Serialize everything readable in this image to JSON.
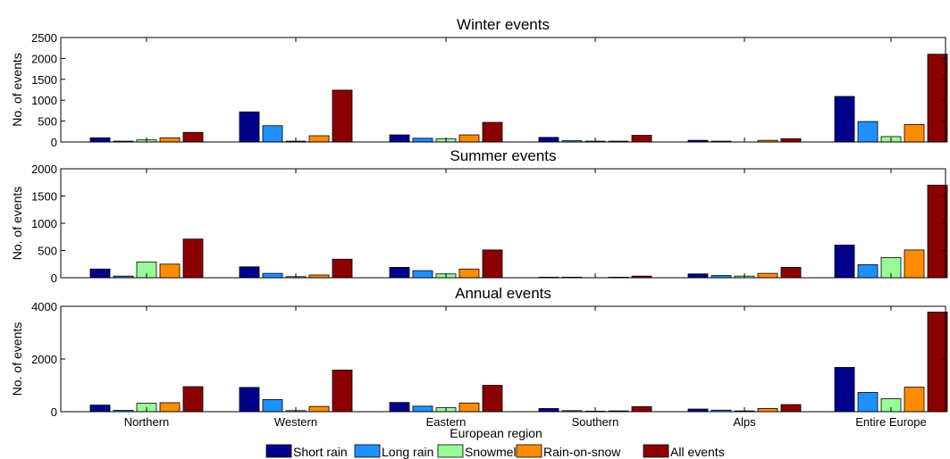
{
  "figure": {
    "xlabel": "European region",
    "legend_position": "bottom",
    "legend": [
      {
        "name": "Short rain",
        "color": "#00008b"
      },
      {
        "name": "Long rain",
        "color": "#1e90ff"
      },
      {
        "name": "Snowmelt",
        "color": "#98fb98"
      },
      {
        "name": "Rain-on-snow",
        "color": "#ff8c00"
      },
      {
        "name": "All events",
        "color": "#8b0000"
      }
    ]
  },
  "chart_data": [
    {
      "type": "bar",
      "title": "Winter events",
      "ylabel": "No. of events",
      "ylim": [
        0,
        2500
      ],
      "yticks": [
        0,
        500,
        1000,
        1500,
        2000,
        2500
      ],
      "grid": false,
      "categories": [
        "Northern",
        "Western",
        "Eastern",
        "Southern",
        "Alps",
        "Entire Europe"
      ],
      "series": [
        {
          "name": "Short rain",
          "values": [
            100,
            720,
            170,
            110,
            40,
            1090
          ]
        },
        {
          "name": "Long rain",
          "values": [
            20,
            390,
            90,
            30,
            20,
            490
          ]
        },
        {
          "name": "Snowmelt",
          "values": [
            50,
            20,
            80,
            20,
            0,
            130
          ]
        },
        {
          "name": "Rain-on-snow",
          "values": [
            100,
            150,
            170,
            20,
            40,
            420
          ]
        },
        {
          "name": "All events",
          "values": [
            230,
            1240,
            470,
            160,
            80,
            2100
          ]
        }
      ]
    },
    {
      "type": "bar",
      "title": "Summer events",
      "ylabel": "No. of events",
      "ylim": [
        0,
        2000
      ],
      "yticks": [
        0,
        500,
        1000,
        1500,
        2000
      ],
      "grid": false,
      "categories": [
        "Northern",
        "Western",
        "Eastern",
        "Southern",
        "Alps",
        "Entire Europe"
      ],
      "series": [
        {
          "name": "Short rain",
          "values": [
            160,
            200,
            190,
            10,
            70,
            600
          ]
        },
        {
          "name": "Long rain",
          "values": [
            30,
            80,
            130,
            10,
            40,
            240
          ]
        },
        {
          "name": "Snowmelt",
          "values": [
            290,
            20,
            70,
            0,
            30,
            370
          ]
        },
        {
          "name": "Rain-on-snow",
          "values": [
            250,
            50,
            160,
            10,
            80,
            510
          ]
        },
        {
          "name": "All events",
          "values": [
            710,
            340,
            510,
            30,
            190,
            1700
          ]
        }
      ]
    },
    {
      "type": "bar",
      "title": "Annual events",
      "ylabel": "No. of events",
      "ylim": [
        0,
        4000
      ],
      "yticks": [
        0,
        2000,
        4000
      ],
      "grid": false,
      "categories": [
        "Northern",
        "Western",
        "Eastern",
        "Southern",
        "Alps",
        "Entire Europe"
      ],
      "series": [
        {
          "name": "Short rain",
          "values": [
            250,
            920,
            350,
            120,
            100,
            1680
          ]
        },
        {
          "name": "Long rain",
          "values": [
            50,
            460,
            210,
            40,
            60,
            730
          ]
        },
        {
          "name": "Snowmelt",
          "values": [
            320,
            40,
            150,
            20,
            30,
            490
          ]
        },
        {
          "name": "Rain-on-snow",
          "values": [
            340,
            200,
            330,
            30,
            120,
            930
          ]
        },
        {
          "name": "All events",
          "values": [
            950,
            1580,
            1000,
            190,
            270,
            3780
          ]
        }
      ]
    }
  ]
}
